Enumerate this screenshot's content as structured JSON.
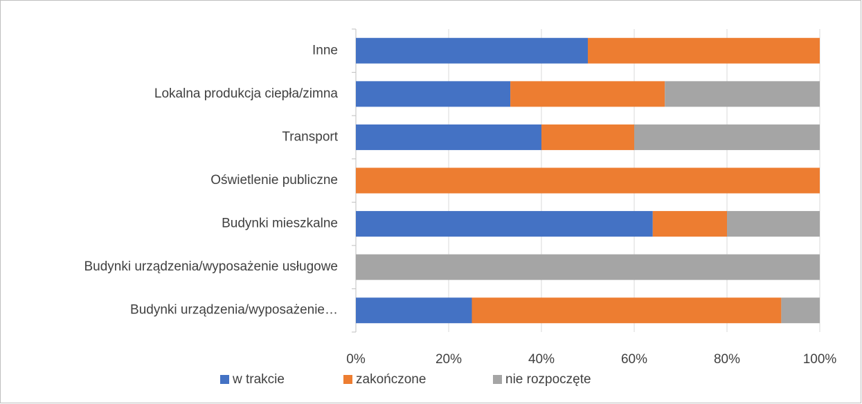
{
  "chart_data": {
    "type": "stacked_bar_horizontal",
    "categories": [
      "Inne",
      "Lokalna produkcja ciepła/zimna",
      "Transport",
      "Oświetlenie publiczne",
      "Budynki mieszkalne",
      "Budynki urządzenia/wyposażenie usługowe",
      "Budynki urządzenia/wyposażenie…"
    ],
    "series": [
      {
        "name": "w trakcie",
        "color": "#4472c4",
        "values": [
          50,
          33.3,
          40,
          0,
          64,
          0,
          25
        ]
      },
      {
        "name": "zakończone",
        "color": "#ed7d31",
        "values": [
          50,
          33.3,
          20,
          100,
          16,
          0,
          66.7
        ]
      },
      {
        "name": "nie rozpoczęte",
        "color": "#a5a5a5",
        "values": [
          0,
          33.4,
          40,
          0,
          20,
          100,
          8.3
        ]
      }
    ],
    "xlim": [
      0,
      100
    ],
    "xticks": [
      {
        "value": 0,
        "label": "0%"
      },
      {
        "value": 20,
        "label": "20%"
      },
      {
        "value": 40,
        "label": "40%"
      },
      {
        "value": 60,
        "label": "60%"
      },
      {
        "value": 80,
        "label": "80%"
      },
      {
        "value": 100,
        "label": "100%"
      }
    ],
    "grid": true,
    "legend": "bottom"
  }
}
